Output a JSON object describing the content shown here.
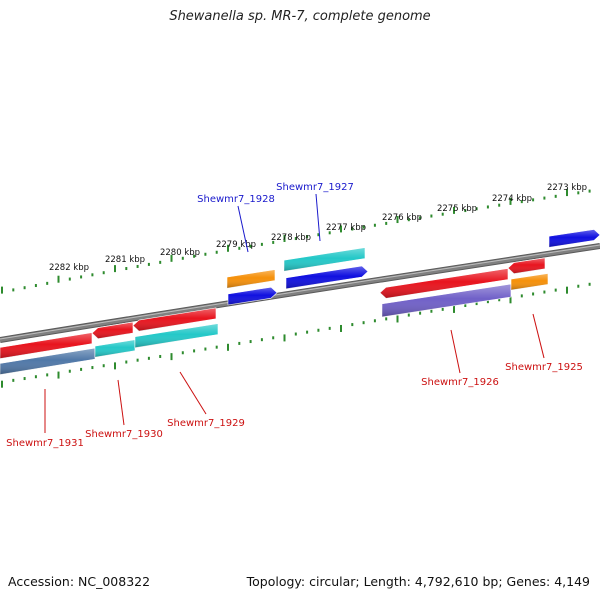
{
  "title": "Shewanella sp. MR-7, complete genome",
  "footer": {
    "accession": "Accession: NC_008322",
    "summary": "Topology: circular; Length: 4,792,610 bp; Genes: 4,149"
  },
  "colors": {
    "background": "#ffffff",
    "backbone": "#808080",
    "tick": "#2e8b2e",
    "label_blue": "#1a1acc",
    "label_red": "#cc1111",
    "gene_red": "#e8141e",
    "gene_blue": "#1010e0",
    "gene_cyan": "#24c8c8",
    "gene_orange": "#f5900a",
    "gene_purple": "#7060c8",
    "gene_steel": "#5078a8"
  },
  "ruler": {
    "unit": "kbp",
    "labels": [
      "2282 kbp",
      "2281 kbp",
      "2280 kbp",
      "2279 kbp",
      "2278 kbp",
      "2277 kbp",
      "2276 kbp",
      "2275 kbp",
      "2274 kbp",
      "2273 kbp"
    ]
  },
  "gene_labels": [
    {
      "text": "Shewmr7_1928",
      "color": "label_blue"
    },
    {
      "text": "Shewmr7_1927",
      "color": "label_blue"
    },
    {
      "text": "Shewmr7_1926",
      "color": "label_red"
    },
    {
      "text": "Shewmr7_1925",
      "color": "label_red"
    },
    {
      "text": "Shewmr7_1931",
      "color": "label_red"
    },
    {
      "text": "Shewmr7_1930",
      "color": "label_red"
    },
    {
      "text": "Shewmr7_1929",
      "color": "label_red"
    }
  ]
}
